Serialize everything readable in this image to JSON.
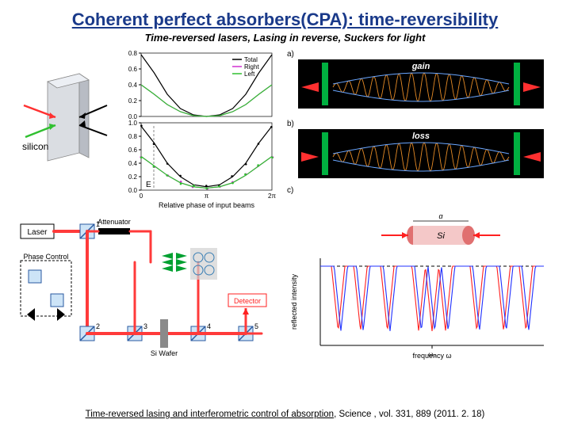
{
  "title": "Coherent perfect absorbers(CPA): time-reversibility",
  "subtitle": "Time-reversed lasers, Lasing in reverse, Suckers for light",
  "citation_prefix": "Time-reversed lasing and interferometric control of absorption",
  "citation_suffix": ", Science , vol. 331, 889 (2011. 2. 18)",
  "silicon_label": "silicon",
  "top_chart": {
    "ylim": [
      0,
      0.8
    ],
    "yticks": [
      0,
      0.2,
      0.4,
      0.6,
      0.8
    ],
    "legend": [
      {
        "label": "Total",
        "color": "#000000"
      },
      {
        "label": "Right",
        "color": "#d030d0"
      },
      {
        "label": "Left",
        "color": "#30c030"
      }
    ],
    "curves": {
      "total": {
        "color": "#000000",
        "y": [
          0.78,
          0.55,
          0.28,
          0.1,
          0.02,
          0.0,
          0.02,
          0.1,
          0.28,
          0.55,
          0.78
        ]
      },
      "right": {
        "color": "#d030d0",
        "y": [
          0.4,
          0.28,
          0.15,
          0.06,
          0.01,
          0.0,
          0.01,
          0.06,
          0.15,
          0.28,
          0.4
        ]
      },
      "left": {
        "color": "#30c030",
        "y": [
          0.4,
          0.28,
          0.15,
          0.06,
          0.01,
          0.0,
          0.01,
          0.06,
          0.15,
          0.28,
          0.4
        ]
      }
    }
  },
  "bottom_chart": {
    "ylim": [
      0,
      1.0
    ],
    "yticks": [
      0,
      0.2,
      0.4,
      0.6,
      0.8,
      1.0
    ],
    "xticks": [
      "0",
      "π",
      "2π"
    ],
    "xlabel": "Relative phase of input beams",
    "curves": {
      "total": {
        "color": "#000000",
        "y": [
          0.95,
          0.7,
          0.4,
          0.2,
          0.08,
          0.05,
          0.08,
          0.2,
          0.4,
          0.7,
          0.95
        ]
      },
      "right": {
        "color": "#d030d0",
        "y": [
          0.5,
          0.36,
          0.22,
          0.11,
          0.05,
          0.03,
          0.05,
          0.11,
          0.22,
          0.36,
          0.5
        ]
      },
      "left": {
        "color": "#30c030",
        "y": [
          0.5,
          0.36,
          0.22,
          0.11,
          0.05,
          0.03,
          0.05,
          0.11,
          0.22,
          0.36,
          0.5
        ]
      }
    }
  },
  "wave_panels": {
    "a_label": "a)",
    "b_label": "b)",
    "c_label": "c)",
    "gain_label": "gain",
    "loss_label": "loss",
    "bg": "#000000",
    "mirror": "#00b040",
    "arrows": "#ff3030",
    "envelope": "#6aa6ff",
    "wave": "#ff9a2a"
  },
  "si_cyl": {
    "label": "Si",
    "d_label": "d",
    "body": "#f4c8c8",
    "ends": "#e07070",
    "arrow": "#ff2020"
  },
  "freq_chart": {
    "xlabel": "frequency ω",
    "ylabel": "reflected intensity",
    "x_center": "ω₀",
    "red": "#ff2020",
    "blue": "#2030ff",
    "dash": "#000000",
    "mins": [
      0.08,
      0.18,
      0.3,
      0.44,
      0.5,
      0.56,
      0.7,
      0.82,
      0.92
    ]
  },
  "optical": {
    "beam": "#ff3a3a",
    "mirror_fill": "#cde4f7",
    "mirror_stroke": "#2a5aa0",
    "attenuator": "#000000",
    "wafer": "#8a8a8a",
    "phase_box": "#000000",
    "green_arrow": "#00a030",
    "detector_red": "#ff2020",
    "labels": {
      "Laser": "Laser",
      "Attenuator": "Attenuator",
      "PhaseControl": "Phase Control",
      "SiWafer": "Si Wafer",
      "Detector": "Detector",
      "m1": "1",
      "m2": "2",
      "m3": "3",
      "m4": "4",
      "m5": "5"
    }
  }
}
